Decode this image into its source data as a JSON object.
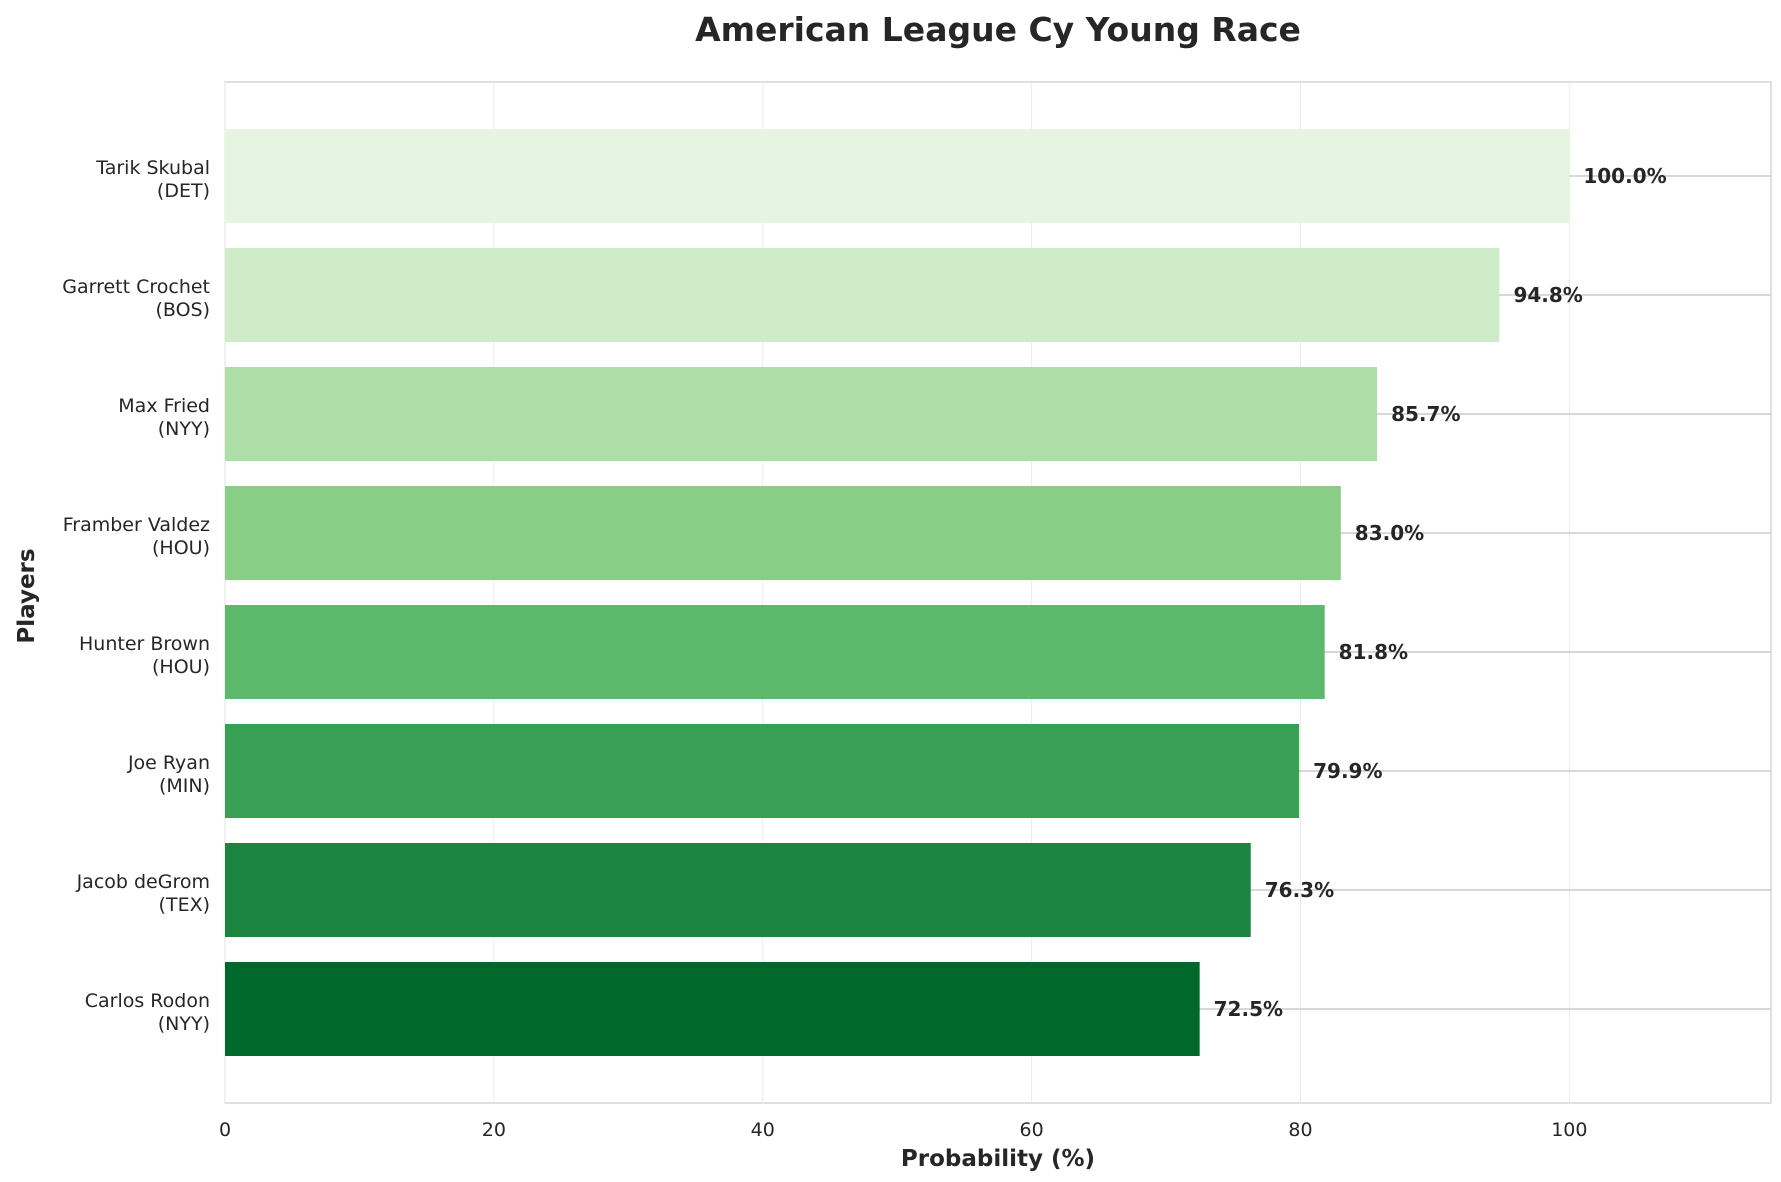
{
  "chart_data": {
    "type": "bar",
    "orientation": "horizontal",
    "title": "American League Cy Young Race",
    "xlabel": "Probability (%)",
    "ylabel": "Players",
    "xlim": [
      0,
      115
    ],
    "xticks": [
      0,
      20,
      40,
      60,
      80,
      100
    ],
    "grid": true,
    "categories": [
      "Tarik Skubal\n(DET)",
      "Garrett Crochet\n(BOS)",
      "Max Fried\n(NYY)",
      "Framber Valdez\n(HOU)",
      "Hunter Brown\n(HOU)",
      "Joe Ryan\n(MIN)",
      "Jacob deGrom\n(TEX)",
      "Carlos Rodon\n(NYY)"
    ],
    "values": [
      100.0,
      94.8,
      85.7,
      83.0,
      81.8,
      79.9,
      76.3,
      72.5
    ],
    "data_labels": [
      "100.0%",
      "94.8%",
      "85.7%",
      "83.0%",
      "81.8%",
      "79.9%",
      "76.3%",
      "72.5%"
    ],
    "colors": [
      "#e6f5e1",
      "#cfecc9",
      "#aedea7",
      "#88ce87",
      "#5db96b",
      "#37a055",
      "#1b843f",
      "#00682a"
    ]
  }
}
